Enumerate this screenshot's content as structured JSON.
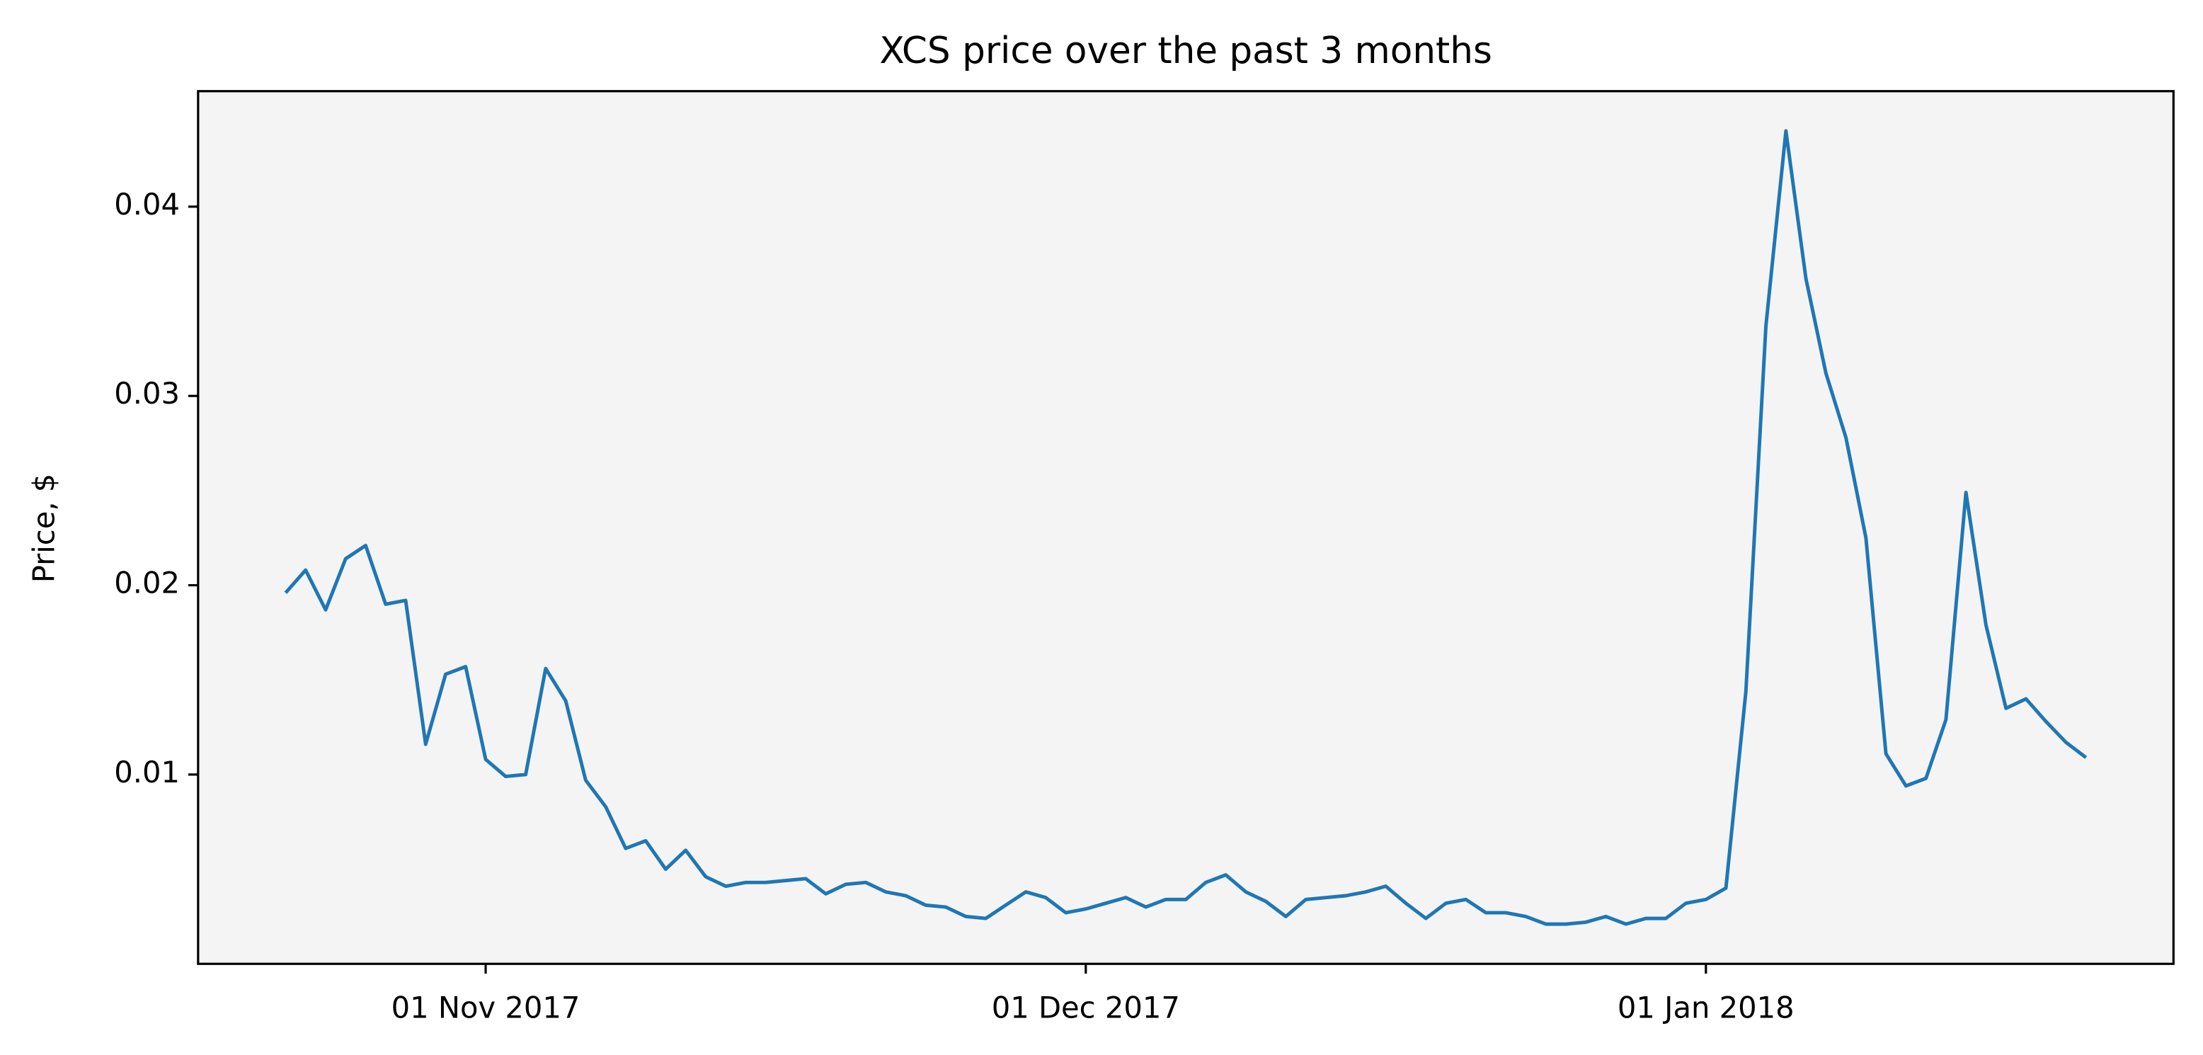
{
  "chart_data": {
    "type": "line",
    "title": "XCS price over the past 3 months",
    "y_label": "Price, $",
    "x": [
      "2017-10-22",
      "2017-10-23",
      "2017-10-24",
      "2017-10-25",
      "2017-10-26",
      "2017-10-27",
      "2017-10-28",
      "2017-10-29",
      "2017-10-30",
      "2017-10-31",
      "2017-11-01",
      "2017-11-02",
      "2017-11-03",
      "2017-11-04",
      "2017-11-05",
      "2017-11-06",
      "2017-11-07",
      "2017-11-08",
      "2017-11-09",
      "2017-11-10",
      "2017-11-11",
      "2017-11-12",
      "2017-11-13",
      "2017-11-14",
      "2017-11-15",
      "2017-11-16",
      "2017-11-17",
      "2017-11-18",
      "2017-11-19",
      "2017-11-20",
      "2017-11-21",
      "2017-11-22",
      "2017-11-23",
      "2017-11-24",
      "2017-11-25",
      "2017-11-26",
      "2017-11-27",
      "2017-11-28",
      "2017-11-29",
      "2017-11-30",
      "2017-12-01",
      "2017-12-02",
      "2017-12-03",
      "2017-12-04",
      "2017-12-05",
      "2017-12-06",
      "2017-12-07",
      "2017-12-08",
      "2017-12-09",
      "2017-12-10",
      "2017-12-11",
      "2017-12-12",
      "2017-12-13",
      "2017-12-14",
      "2017-12-15",
      "2017-12-16",
      "2017-12-17",
      "2017-12-18",
      "2017-12-19",
      "2017-12-20",
      "2017-12-21",
      "2017-12-22",
      "2017-12-23",
      "2017-12-24",
      "2017-12-25",
      "2017-12-26",
      "2017-12-27",
      "2017-12-28",
      "2017-12-29",
      "2017-12-30",
      "2017-12-31",
      "2018-01-01",
      "2018-01-02",
      "2018-01-03",
      "2018-01-04",
      "2018-01-05",
      "2018-01-06",
      "2018-01-07",
      "2018-01-08",
      "2018-01-09",
      "2018-01-10",
      "2018-01-11",
      "2018-01-12",
      "2018-01-13",
      "2018-01-14",
      "2018-01-15",
      "2018-01-16",
      "2018-01-17",
      "2018-01-18",
      "2018-01-19",
      "2018-01-20"
    ],
    "series": [
      {
        "color": "#1f77b4",
        "values": [
          0.0196,
          0.0208,
          0.0187,
          0.0214,
          0.0221,
          0.019,
          0.0192,
          0.0116,
          0.0153,
          0.0157,
          0.0108,
          0.0099,
          0.01,
          0.0156,
          0.0139,
          0.0097,
          0.0083,
          0.0061,
          0.0065,
          0.005,
          0.006,
          0.0046,
          0.0041,
          0.0043,
          0.0043,
          0.0044,
          0.0045,
          0.0037,
          0.0042,
          0.0043,
          0.0038,
          0.0036,
          0.0031,
          0.003,
          0.0025,
          0.0024,
          0.0031,
          0.0038,
          0.0035,
          0.0027,
          0.0029,
          0.0032,
          0.0035,
          0.003,
          0.0034,
          0.0034,
          0.0043,
          0.0047,
          0.0038,
          0.0033,
          0.0025,
          0.0034,
          0.0035,
          0.0036,
          0.0038,
          0.0041,
          0.0032,
          0.0024,
          0.0032,
          0.0034,
          0.0027,
          0.0027,
          0.0025,
          0.0021,
          0.0021,
          0.0022,
          0.0025,
          0.0021,
          0.0024,
          0.0024,
          0.0032,
          0.0034,
          0.004,
          0.0144,
          0.0337,
          0.044,
          0.0362,
          0.0312,
          0.0278,
          0.0225,
          0.0111,
          0.0094,
          0.0098,
          0.0129,
          0.0249,
          0.0179,
          0.0135,
          0.014,
          0.0128,
          0.0117,
          0.0109
        ]
      }
    ],
    "xlim": [
      "2017-10-17T15:00:00Z",
      "2018-01-24T09:00:00Z"
    ],
    "xticks": [
      {
        "value": "2017-11-01",
        "label": "01 Nov 2017"
      },
      {
        "value": "2017-12-01",
        "label": "01 Dec 2017"
      },
      {
        "value": "2018-01-01",
        "label": "01 Jan 2018"
      }
    ],
    "ylim": [
      0,
      0.0461
    ],
    "yticks": [
      0.01,
      0.02,
      0.03,
      0.04
    ],
    "background": "#f4f4f4"
  }
}
